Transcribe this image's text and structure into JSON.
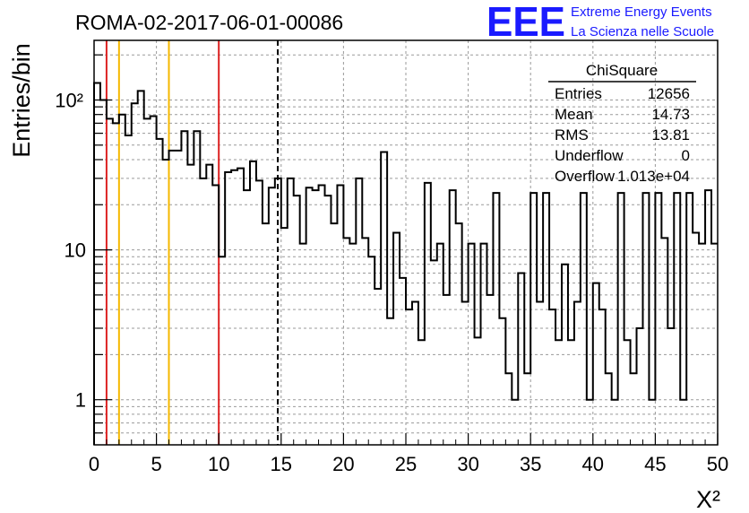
{
  "header": {
    "run_title": "ROMA-02-2017-06-01-00086",
    "logo_text": "EEE",
    "brand_line1": "Extreme Energy Events",
    "brand_line2": "La Scienza nelle Scuole"
  },
  "stats_box": {
    "name": "ChiSquare",
    "rows": [
      {
        "label": "Entries",
        "value": "12656"
      },
      {
        "label": "Mean",
        "value": "14.73"
      },
      {
        "label": "RMS",
        "value": "13.81"
      },
      {
        "label": "Underflow",
        "value": "0"
      },
      {
        "label": "Overflow",
        "value": "1.013e+04"
      }
    ]
  },
  "colors": {
    "red_line": "#dd2222",
    "orange_line": "#f5b800",
    "histogram": "#000000",
    "logo_blue": "#1a1aff"
  },
  "chart_data": {
    "type": "histogram",
    "title": "ROMA-02-2017-06-01-00086",
    "xlabel": "X²",
    "ylabel": "Entries/bin",
    "x_scale": "linear",
    "y_scale": "log",
    "xlim": [
      0,
      50
    ],
    "ylim": [
      0.5,
      250
    ],
    "grid": true,
    "x_ticks": [
      "0",
      "5",
      "10",
      "15",
      "20",
      "25",
      "30",
      "35",
      "40",
      "45",
      "50"
    ],
    "y_ticks": [
      {
        "value": 1,
        "label": "1"
      },
      {
        "value": 10,
        "label": "10"
      },
      {
        "value": 100,
        "label": "10²"
      }
    ],
    "bin_width": 0.5,
    "bins": [
      {
        "x": 0.0,
        "y": 130
      },
      {
        "x": 0.5,
        "y": 100
      },
      {
        "x": 1.0,
        "y": 75
      },
      {
        "x": 1.5,
        "y": 70
      },
      {
        "x": 2.0,
        "y": 80
      },
      {
        "x": 2.5,
        "y": 58
      },
      {
        "x": 3.0,
        "y": 95
      },
      {
        "x": 3.5,
        "y": 115
      },
      {
        "x": 4.0,
        "y": 75
      },
      {
        "x": 4.5,
        "y": 78
      },
      {
        "x": 5.0,
        "y": 55
      },
      {
        "x": 5.5,
        "y": 40
      },
      {
        "x": 6.0,
        "y": 46
      },
      {
        "x": 6.5,
        "y": 46
      },
      {
        "x": 7.0,
        "y": 62
      },
      {
        "x": 7.5,
        "y": 37
      },
      {
        "x": 8.0,
        "y": 62
      },
      {
        "x": 8.5,
        "y": 30
      },
      {
        "x": 9.0,
        "y": 37
      },
      {
        "x": 9.5,
        "y": 27
      },
      {
        "x": 10.0,
        "y": 9
      },
      {
        "x": 10.5,
        "y": 33
      },
      {
        "x": 11.0,
        "y": 34
      },
      {
        "x": 11.5,
        "y": 35
      },
      {
        "x": 12.0,
        "y": 25
      },
      {
        "x": 12.5,
        "y": 39
      },
      {
        "x": 13.0,
        "y": 29
      },
      {
        "x": 13.5,
        "y": 15
      },
      {
        "x": 14.0,
        "y": 26
      },
      {
        "x": 14.5,
        "y": 30
      },
      {
        "x": 15.0,
        "y": 14
      },
      {
        "x": 15.5,
        "y": 30
      },
      {
        "x": 16.0,
        "y": 23
      },
      {
        "x": 16.5,
        "y": 11
      },
      {
        "x": 17.0,
        "y": 26
      },
      {
        "x": 17.5,
        "y": 25
      },
      {
        "x": 18.0,
        "y": 27
      },
      {
        "x": 18.5,
        "y": 23
      },
      {
        "x": 19.0,
        "y": 15
      },
      {
        "x": 19.5,
        "y": 27
      },
      {
        "x": 20.0,
        "y": 12
      },
      {
        "x": 20.5,
        "y": 11
      },
      {
        "x": 21.0,
        "y": 30
      },
      {
        "x": 21.5,
        "y": 12
      },
      {
        "x": 22.0,
        "y": 9
      },
      {
        "x": 22.5,
        "y": 5.5
      },
      {
        "x": 23.0,
        "y": 45
      },
      {
        "x": 23.5,
        "y": 3.5
      },
      {
        "x": 24.0,
        "y": 13
      },
      {
        "x": 24.5,
        "y": 6.5
      },
      {
        "x": 25.0,
        "y": 4
      },
      {
        "x": 25.5,
        "y": 4.5
      },
      {
        "x": 26.0,
        "y": 2.5
      },
      {
        "x": 26.5,
        "y": 28
      },
      {
        "x": 27.0,
        "y": 8.5
      },
      {
        "x": 27.5,
        "y": 11
      },
      {
        "x": 28.0,
        "y": 5
      },
      {
        "x": 28.5,
        "y": 25
      },
      {
        "x": 29.0,
        "y": 15
      },
      {
        "x": 29.5,
        "y": 4.5
      },
      {
        "x": 30.0,
        "y": 11
      },
      {
        "x": 30.5,
        "y": 2.6
      },
      {
        "x": 31.0,
        "y": 11
      },
      {
        "x": 31.5,
        "y": 5
      },
      {
        "x": 32.0,
        "y": 24
      },
      {
        "x": 32.5,
        "y": 3.5
      },
      {
        "x": 33.0,
        "y": 1.5
      },
      {
        "x": 33.5,
        "y": 1
      },
      {
        "x": 34.0,
        "y": 7
      },
      {
        "x": 34.5,
        "y": 1.5
      },
      {
        "x": 35.0,
        "y": 24
      },
      {
        "x": 35.5,
        "y": 4.5
      },
      {
        "x": 36.0,
        "y": 24
      },
      {
        "x": 36.5,
        "y": 4
      },
      {
        "x": 37.0,
        "y": 2.5
      },
      {
        "x": 37.5,
        "y": 8
      },
      {
        "x": 38.0,
        "y": 2.5
      },
      {
        "x": 38.5,
        "y": 4.5
      },
      {
        "x": 39.0,
        "y": 24
      },
      {
        "x": 39.5,
        "y": 1
      },
      {
        "x": 40.0,
        "y": 6
      },
      {
        "x": 40.5,
        "y": 4
      },
      {
        "x": 41.0,
        "y": 1.5
      },
      {
        "x": 41.5,
        "y": 1
      },
      {
        "x": 42.0,
        "y": 24
      },
      {
        "x": 42.5,
        "y": 2.5
      },
      {
        "x": 43.0,
        "y": 1.5
      },
      {
        "x": 43.5,
        "y": 3
      },
      {
        "x": 44.0,
        "y": 24
      },
      {
        "x": 44.5,
        "y": 1
      },
      {
        "x": 45.0,
        "y": 24
      },
      {
        "x": 45.5,
        "y": 12
      },
      {
        "x": 46.0,
        "y": 3
      },
      {
        "x": 46.5,
        "y": 24
      },
      {
        "x": 47.0,
        "y": 1
      },
      {
        "x": 47.5,
        "y": 24
      },
      {
        "x": 48.0,
        "y": 13
      },
      {
        "x": 48.5,
        "y": 11
      },
      {
        "x": 49.0,
        "y": 25
      },
      {
        "x": 49.5,
        "y": 11
      }
    ],
    "reference_lines": [
      {
        "x": 1,
        "color": "#dd2222",
        "style": "solid"
      },
      {
        "x": 2,
        "color": "#f5b800",
        "style": "solid"
      },
      {
        "x": 6,
        "color": "#f5b800",
        "style": "solid"
      },
      {
        "x": 10,
        "color": "#dd2222",
        "style": "solid"
      },
      {
        "x": 14.73,
        "color": "#000000",
        "style": "dashed"
      }
    ]
  }
}
